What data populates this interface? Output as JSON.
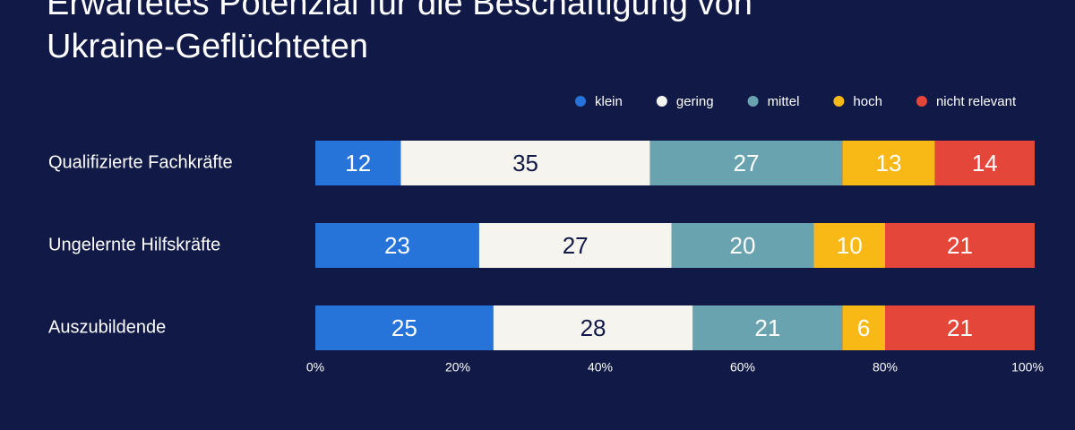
{
  "chart_data": {
    "type": "stacked-bar",
    "title": "Erwartetes Potenzial für die Beschäftigung von Ukraine-Geflüchteten",
    "categories": [
      "Qualifizierte Fachkräfte",
      "Ungelernte Hilfskräfte",
      "Auszubildende"
    ],
    "series": [
      {
        "name": "klein",
        "color": "#2673d9",
        "values": [
          12,
          23,
          25
        ]
      },
      {
        "name": "gering",
        "color": "#f5f4ef",
        "values": [
          35,
          27,
          28
        ]
      },
      {
        "name": "mittel",
        "color": "#6aa3b0",
        "values": [
          27,
          20,
          21
        ]
      },
      {
        "name": "hoch",
        "color": "#f8b816",
        "values": [
          13,
          10,
          6
        ]
      },
      {
        "name": "nicht relevant",
        "color": "#e5463a",
        "values": [
          14,
          21,
          21
        ]
      }
    ],
    "xlim": [
      0,
      100
    ],
    "xticks": [
      {
        "value": 0,
        "label": "0%"
      },
      {
        "value": 20,
        "label": "20%"
      },
      {
        "value": 40,
        "label": "40%"
      },
      {
        "value": 60,
        "label": "60%"
      },
      {
        "value": 80,
        "label": "80%"
      },
      {
        "value": 100,
        "label": "100%"
      }
    ],
    "legend": "top-right"
  }
}
